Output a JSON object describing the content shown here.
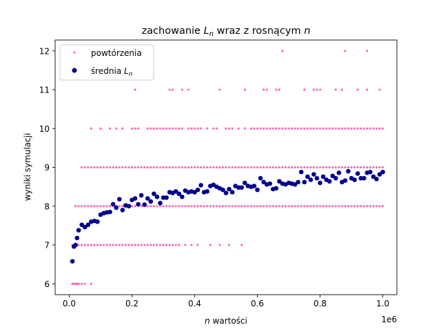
{
  "chart_data": {
    "type": "scatter",
    "title": "zachowanie L_n wraz z rosnącym n",
    "title_parts": {
      "prefix": "zachowanie ",
      "var": "L",
      "sub": "n",
      "suffix": " wraz z rosnącym ",
      "var2": "n"
    },
    "xlabel_parts": {
      "var": "n",
      "text": " wartości"
    },
    "ylabel": "wyniki symulacji",
    "x_offset_text": "1e6",
    "xlim": [
      -45000,
      1045000
    ],
    "ylim": [
      5.72,
      12.28
    ],
    "x_ticks": [
      0,
      200000,
      400000,
      600000,
      800000,
      1000000
    ],
    "x_tick_labels": [
      "0.0",
      "0.2",
      "0.4",
      "0.6",
      "0.8",
      "1.0"
    ],
    "y_ticks": [
      6,
      7,
      8,
      9,
      10,
      11,
      12
    ],
    "y_tick_labels": [
      "6",
      "7",
      "8",
      "9",
      "10",
      "11",
      "12"
    ],
    "grid": false,
    "legend": {
      "position": "top-left"
    },
    "series": [
      {
        "name": "powtórzenia",
        "color": "#ff69b4",
        "marker": "small-dot",
        "points": {
          "6": [
            10000,
            15000,
            20000,
            25000,
            30000,
            40000,
            50000,
            70000
          ],
          "7": [
            10000,
            20000,
            30000,
            40000,
            50000,
            60000,
            70000,
            80000,
            90000,
            100000,
            110000,
            120000,
            130000,
            140000,
            150000,
            160000,
            170000,
            180000,
            190000,
            200000,
            210000,
            220000,
            230000,
            240000,
            250000,
            260000,
            270000,
            280000,
            290000,
            300000,
            310000,
            320000,
            330000,
            340000,
            350000,
            370000,
            390000,
            410000,
            450000,
            480000,
            510000,
            550000
          ],
          "9": [
            40000,
            50000,
            60000,
            70000,
            80000,
            90000,
            100000,
            110000,
            120000,
            130000,
            140000,
            150000,
            160000,
            170000,
            180000,
            190000,
            200000,
            210000,
            220000,
            230000,
            240000,
            250000,
            260000,
            270000,
            280000,
            290000,
            300000,
            310000,
            320000,
            330000,
            340000,
            350000,
            360000,
            370000,
            380000,
            390000,
            400000,
            410000,
            420000,
            430000,
            440000,
            450000,
            460000,
            470000,
            480000,
            490000,
            500000,
            510000,
            520000,
            530000,
            540000,
            550000,
            560000,
            570000,
            580000,
            590000,
            600000,
            610000,
            620000,
            630000,
            640000,
            650000,
            660000,
            670000,
            680000,
            690000,
            700000,
            710000,
            720000,
            730000,
            740000,
            750000,
            760000,
            770000,
            780000,
            790000,
            800000,
            810000,
            820000,
            830000,
            840000,
            850000,
            860000,
            870000,
            880000,
            890000,
            900000,
            910000,
            920000,
            930000,
            940000,
            950000,
            960000,
            970000,
            980000,
            990000,
            1000000
          ],
          "10": [
            70000,
            100000,
            130000,
            150000,
            170000,
            200000,
            210000,
            220000,
            250000,
            260000,
            270000,
            280000,
            290000,
            300000,
            310000,
            320000,
            330000,
            340000,
            350000,
            360000,
            380000,
            390000,
            400000,
            410000,
            420000,
            440000,
            460000,
            470000,
            500000,
            510000,
            520000,
            540000,
            560000,
            580000,
            590000,
            600000,
            610000,
            620000,
            630000,
            640000,
            650000,
            660000,
            670000,
            680000,
            690000,
            700000,
            710000,
            720000,
            730000,
            740000,
            750000,
            760000,
            770000,
            780000,
            790000,
            800000,
            810000,
            820000,
            830000,
            840000,
            850000,
            860000,
            870000,
            880000,
            890000,
            900000,
            910000,
            920000,
            930000,
            940000,
            950000,
            960000,
            970000,
            980000,
            990000,
            1000000
          ],
          "11": [
            210000,
            320000,
            330000,
            360000,
            380000,
            480000,
            560000,
            620000,
            630000,
            660000,
            670000,
            750000,
            780000,
            790000,
            800000,
            850000,
            870000,
            920000,
            950000,
            990000
          ],
          "12": [
            680000,
            880000,
            950000
          ]
        },
        "full_range_levels": [
          8
        ]
      },
      {
        "name": "średnia L_n",
        "name_parts": {
          "prefix": "średnia ",
          "var": "L",
          "sub": "n"
        },
        "color": "#00008b",
        "marker": "dot",
        "x": [
          10000,
          15000,
          20000,
          25000,
          30000,
          40000,
          50000,
          60000,
          70000,
          80000,
          90000,
          100000,
          110000,
          120000,
          130000,
          140000,
          150000,
          160000,
          170000,
          180000,
          190000,
          200000,
          210000,
          220000,
          230000,
          240000,
          250000,
          260000,
          270000,
          280000,
          290000,
          300000,
          310000,
          320000,
          330000,
          340000,
          350000,
          360000,
          370000,
          380000,
          390000,
          400000,
          410000,
          420000,
          430000,
          440000,
          450000,
          460000,
          470000,
          480000,
          490000,
          500000,
          510000,
          520000,
          530000,
          540000,
          550000,
          560000,
          570000,
          580000,
          590000,
          600000,
          610000,
          620000,
          630000,
          640000,
          650000,
          660000,
          670000,
          680000,
          690000,
          700000,
          710000,
          720000,
          730000,
          740000,
          750000,
          760000,
          770000,
          780000,
          790000,
          800000,
          810000,
          820000,
          830000,
          840000,
          850000,
          860000,
          870000,
          880000,
          890000,
          900000,
          910000,
          920000,
          930000,
          940000,
          950000,
          960000,
          970000,
          980000,
          990000,
          1000000
        ],
        "y": [
          6.58,
          6.96,
          7.0,
          7.18,
          7.38,
          7.52,
          7.46,
          7.52,
          7.6,
          7.62,
          7.6,
          7.78,
          7.82,
          7.84,
          7.85,
          8.05,
          7.96,
          8.18,
          7.9,
          8.02,
          8.0,
          8.16,
          8.2,
          8.05,
          8.28,
          8.04,
          8.2,
          8.12,
          8.32,
          8.24,
          8.08,
          8.22,
          8.22,
          8.36,
          8.34,
          8.38,
          8.32,
          8.24,
          8.4,
          8.36,
          8.38,
          8.36,
          8.42,
          8.54,
          8.36,
          8.38,
          8.52,
          8.55,
          8.5,
          8.46,
          8.42,
          8.34,
          8.44,
          8.36,
          8.52,
          8.48,
          8.48,
          8.6,
          8.52,
          8.5,
          8.52,
          8.42,
          8.72,
          8.62,
          8.56,
          8.58,
          8.44,
          8.46,
          8.64,
          8.58,
          8.56,
          8.6,
          8.58,
          8.56,
          8.62,
          8.88,
          8.62,
          8.76,
          8.68,
          8.82,
          8.72,
          8.6,
          8.76,
          8.68,
          8.64,
          8.78,
          8.72,
          8.86,
          8.62,
          8.66,
          8.9,
          8.72,
          8.68,
          8.84,
          8.72,
          8.72,
          8.86,
          8.88,
          8.76,
          8.7,
          8.82,
          8.88
        ]
      }
    ]
  }
}
